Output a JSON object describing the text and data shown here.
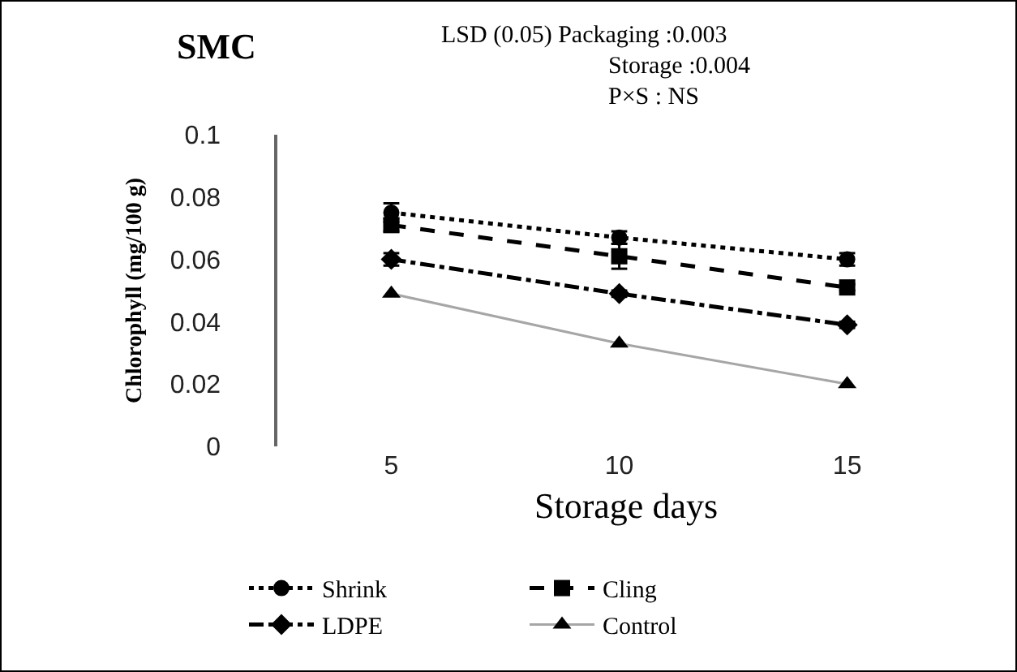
{
  "chart_data": {
    "type": "line",
    "title": "SMC",
    "xlabel": "Storage days",
    "ylabel": "Chlorophyll (mg/100 g)",
    "categories": [
      "5",
      "10",
      "15"
    ],
    "series": [
      {
        "name": "Shrink",
        "color": "#000000",
        "marker": "circle",
        "line_style": "dotted",
        "values": [
          0.075,
          0.067,
          0.06
        ],
        "errors": [
          0.003,
          0.002,
          0.002
        ]
      },
      {
        "name": "Cling",
        "color": "#000000",
        "marker": "square",
        "line_style": "dashed",
        "values": [
          0.071,
          0.061,
          0.051
        ],
        "errors": [
          0.002,
          0.004,
          0.001
        ]
      },
      {
        "name": "LDPE",
        "color": "#000000",
        "marker": "diamond",
        "line_style": "dashdot",
        "values": [
          0.06,
          0.049,
          0.039
        ],
        "errors": [
          0.002,
          0.001,
          0.001
        ]
      },
      {
        "name": "Control",
        "color": "#a6a6a6",
        "marker": "triangle",
        "line_style": "solid",
        "values": [
          0.049,
          0.033,
          0.02
        ]
      }
    ],
    "ylim": [
      0,
      0.1
    ],
    "yticks": [
      0,
      0.02,
      0.04,
      0.06,
      0.08,
      0.1
    ],
    "grid": false,
    "legend": "bottom",
    "annotations": [
      "LSD (0.05) Packaging :0.003",
      "Storage :0.004",
      "P×S : NS"
    ]
  }
}
